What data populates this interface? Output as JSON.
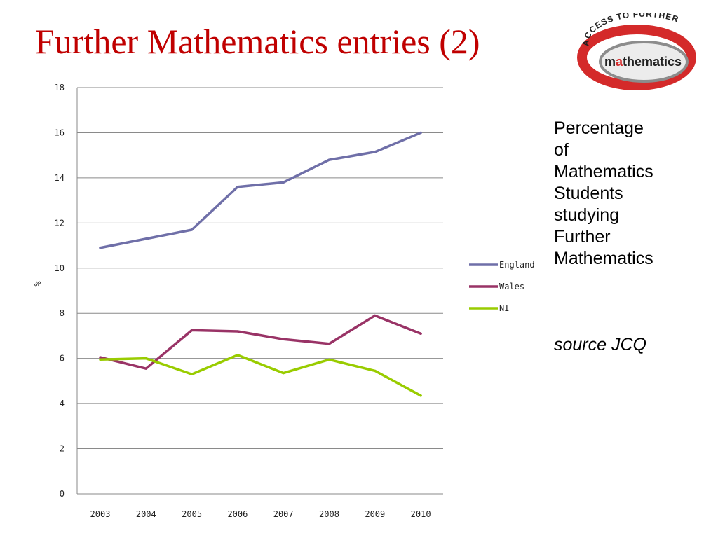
{
  "slide": {
    "title": "Further Mathematics entries (2)",
    "side_text": [
      "Percentage",
      "of",
      "Mathematics",
      "Students",
      "studying",
      "Further",
      "Mathematics"
    ],
    "source": "source JCQ"
  },
  "logo": {
    "arc_text": "ACCESS TO FURTHER",
    "word_prefix": "m",
    "word_highlight": "a",
    "word_suffix": "thematics",
    "colors": {
      "red": "#d42a2a",
      "grey": "#8c8c8c",
      "text": "#222222"
    }
  },
  "chart_data": {
    "type": "line",
    "title": "",
    "xlabel": "",
    "ylabel": "%",
    "categories": [
      "2003",
      "2004",
      "2005",
      "2006",
      "2007",
      "2008",
      "2009",
      "2010"
    ],
    "ylim": [
      0,
      18
    ],
    "yticks": [
      0,
      2,
      4,
      6,
      8,
      10,
      12,
      14,
      16,
      18
    ],
    "grid": true,
    "legend_position": "right",
    "series": [
      {
        "name": "England",
        "color": "#6f6fa8",
        "values": [
          10.9,
          11.3,
          11.7,
          13.6,
          13.8,
          14.8,
          15.15,
          16.0
        ]
      },
      {
        "name": "Wales",
        "color": "#993366",
        "values": [
          6.05,
          5.55,
          7.25,
          7.2,
          6.85,
          6.65,
          7.9,
          7.1
        ]
      },
      {
        "name": "NI",
        "color": "#99cc00",
        "values": [
          5.95,
          6.0,
          5.3,
          6.15,
          5.35,
          5.95,
          5.45,
          4.35
        ]
      }
    ]
  }
}
